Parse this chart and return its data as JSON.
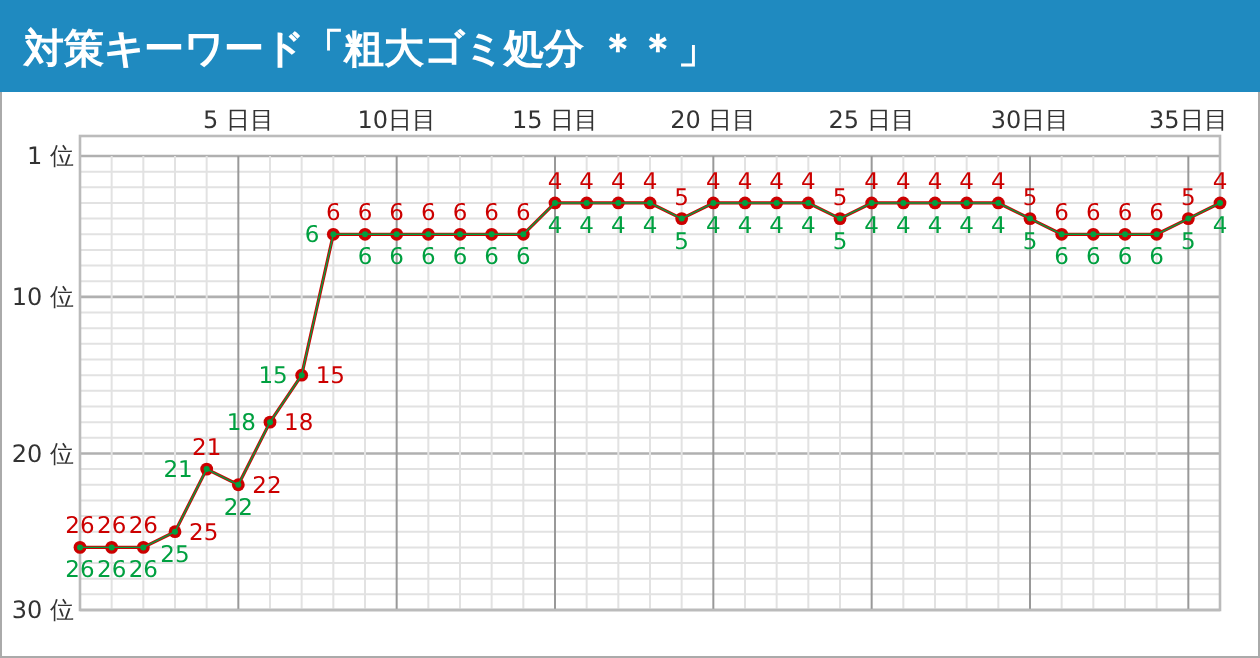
{
  "chart_data": {
    "type": "line",
    "title": "対策キーワード「粗大ゴミ処分 ＊＊」",
    "x": [
      0,
      1,
      2,
      3,
      4,
      5,
      6,
      7,
      8,
      9,
      10,
      11,
      12,
      13,
      14,
      15,
      16,
      17,
      18,
      19,
      20,
      21,
      22,
      23,
      24,
      25,
      26,
      27,
      28,
      29,
      30,
      31,
      32,
      33,
      34,
      35,
      36
    ],
    "series": [
      {
        "color": "#00a040",
        "values": [
          26,
          26,
          26,
          25,
          21,
          22,
          18,
          15,
          6,
          6,
          6,
          6,
          6,
          6,
          6,
          4,
          4,
          4,
          4,
          5,
          4,
          4,
          4,
          4,
          5,
          4,
          4,
          4,
          4,
          4,
          5,
          6,
          6,
          6,
          6,
          5,
          4
        ]
      },
      {
        "color": "#cc0000",
        "values": [
          26,
          26,
          26,
          25,
          21,
          22,
          18,
          15,
          6,
          6,
          6,
          6,
          6,
          6,
          6,
          4,
          4,
          4,
          4,
          5,
          4,
          4,
          4,
          4,
          5,
          4,
          4,
          4,
          4,
          4,
          5,
          6,
          6,
          6,
          6,
          5,
          4
        ]
      }
    ],
    "xlim": [
      0,
      36
    ],
    "xticks": [
      {
        "value": 0,
        "label": null
      },
      {
        "value": 1,
        "label": null
      },
      {
        "value": 2,
        "label": null
      },
      {
        "value": 3,
        "label": null
      },
      {
        "value": 4,
        "label": null
      },
      {
        "value": 5,
        "label": "5 日目"
      },
      {
        "value": 6,
        "label": null
      },
      {
        "value": 7,
        "label": null
      },
      {
        "value": 8,
        "label": null
      },
      {
        "value": 9,
        "label": null
      },
      {
        "value": 10,
        "label": "10日目"
      },
      {
        "value": 11,
        "label": null
      },
      {
        "value": 12,
        "label": null
      },
      {
        "value": 13,
        "label": null
      },
      {
        "value": 14,
        "label": null
      },
      {
        "value": 15,
        "label": "15 日目"
      },
      {
        "value": 16,
        "label": null
      },
      {
        "value": 17,
        "label": null
      },
      {
        "value": 18,
        "label": null
      },
      {
        "value": 19,
        "label": null
      },
      {
        "value": 20,
        "label": "20 日目"
      },
      {
        "value": 21,
        "label": null
      },
      {
        "value": 22,
        "label": null
      },
      {
        "value": 23,
        "label": null
      },
      {
        "value": 24,
        "label": null
      },
      {
        "value": 25,
        "label": "25 日目"
      },
      {
        "value": 26,
        "label": null
      },
      {
        "value": 27,
        "label": null
      },
      {
        "value": 28,
        "label": null
      },
      {
        "value": 29,
        "label": null
      },
      {
        "value": 30,
        "label": "30日目"
      },
      {
        "value": 31,
        "label": null
      },
      {
        "value": 32,
        "label": null
      },
      {
        "value": 33,
        "label": null
      },
      {
        "value": 34,
        "label": null
      },
      {
        "value": 35,
        "label": "35日目"
      },
      {
        "value": 36,
        "label": null
      }
    ],
    "ylim": [
      30,
      1
    ],
    "yticks": [
      {
        "value": 1,
        "label": "1 位"
      },
      {
        "value": 2,
        "label": null
      },
      {
        "value": 3,
        "label": null
      },
      {
        "value": 4,
        "label": null
      },
      {
        "value": 5,
        "label": null
      },
      {
        "value": 6,
        "label": null
      },
      {
        "value": 7,
        "label": null
      },
      {
        "value": 8,
        "label": null
      },
      {
        "value": 9,
        "label": null
      },
      {
        "value": 10,
        "label": "10 位"
      },
      {
        "value": 11,
        "label": null
      },
      {
        "value": 12,
        "label": null
      },
      {
        "value": 13,
        "label": null
      },
      {
        "value": 14,
        "label": null
      },
      {
        "value": 15,
        "label": null
      },
      {
        "value": 16,
        "label": null
      },
      {
        "value": 17,
        "label": null
      },
      {
        "value": 18,
        "label": null
      },
      {
        "value": 19,
        "label": null
      },
      {
        "value": 20,
        "label": "20 位"
      },
      {
        "value": 21,
        "label": null
      },
      {
        "value": 22,
        "label": null
      },
      {
        "value": 23,
        "label": null
      },
      {
        "value": 24,
        "label": null
      },
      {
        "value": 25,
        "label": null
      },
      {
        "value": 26,
        "label": null
      },
      {
        "value": 27,
        "label": null
      },
      {
        "value": 28,
        "label": null
      },
      {
        "value": 29,
        "label": null
      },
      {
        "value": 30,
        "label": "30 位"
      }
    ],
    "grid": true,
    "marker": "circle",
    "data_labels": true
  }
}
